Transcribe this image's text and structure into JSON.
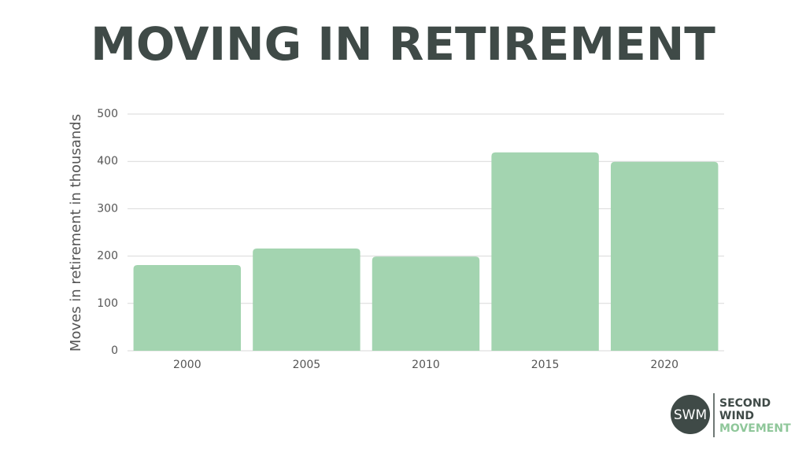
{
  "chart_data": {
    "type": "bar",
    "title": "MOVING IN RETIREMENT",
    "ylabel": "Moves in retirement in thousands",
    "categories": [
      "2000",
      "2005",
      "2010",
      "2015",
      "2020"
    ],
    "values": [
      181,
      216,
      199,
      419,
      399
    ],
    "color": "#a3d4b0",
    "ylim": [
      0,
      500
    ],
    "yticks": [
      0,
      100,
      200,
      300,
      400,
      500
    ],
    "grid": true
  },
  "logo": {
    "initials": "SWM",
    "line1": "SECOND",
    "line2": "WIND",
    "line3": "MOVEMENT"
  }
}
